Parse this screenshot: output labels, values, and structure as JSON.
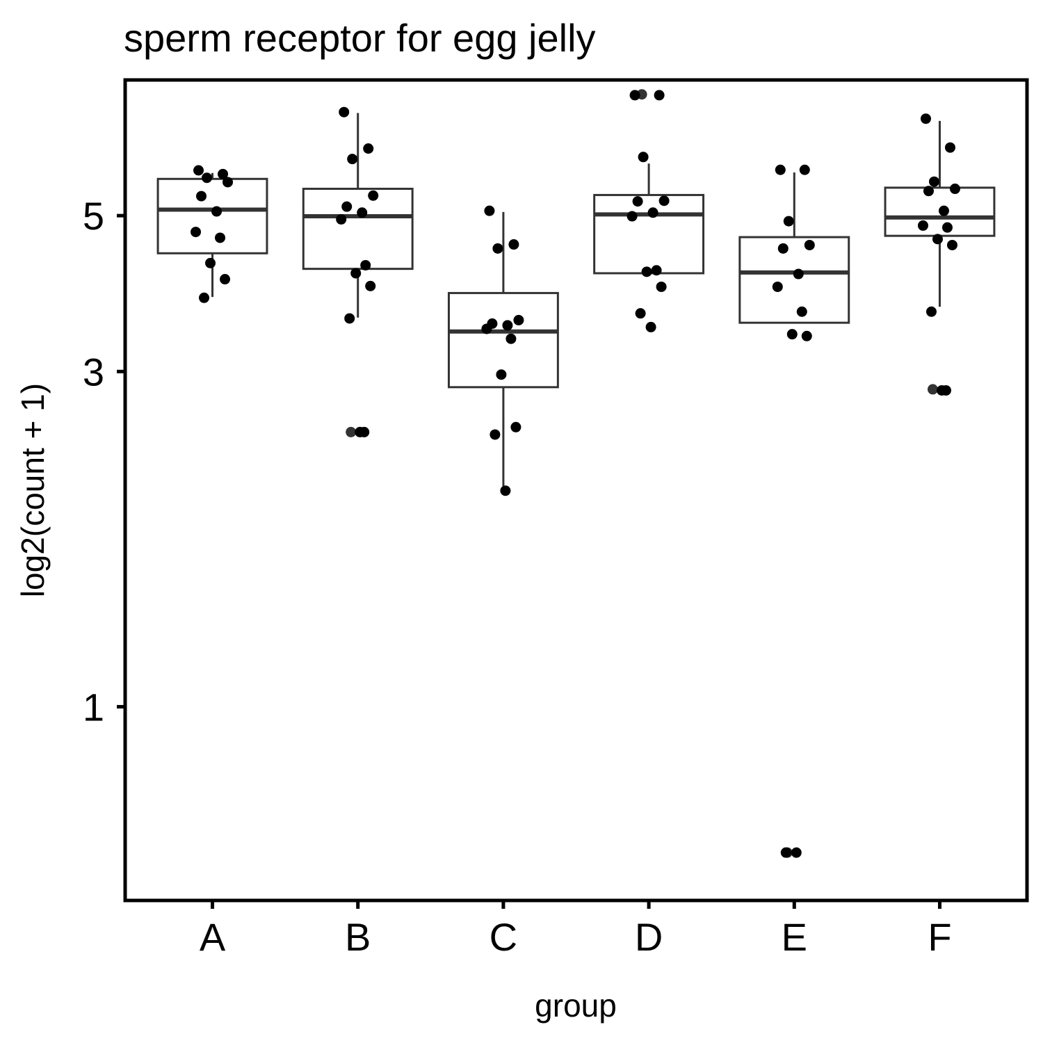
{
  "chart_data": {
    "type": "box",
    "title": "sperm receptor for egg jelly",
    "xlabel": "group",
    "ylabel": "log2(count + 1)",
    "categories": [
      "A",
      "B",
      "C",
      "D",
      "E",
      "F"
    ],
    "y_scale": "log",
    "y_ticks": [
      1,
      3,
      5
    ],
    "ylim": [
      0.53,
      7.8
    ],
    "legend": "none",
    "grid": false,
    "boxes": [
      {
        "group": "A",
        "lower_whisker": 3.83,
        "q1": 4.42,
        "median": 5.1,
        "q3": 5.64,
        "upper_whisker": 5.75,
        "outliers": []
      },
      {
        "group": "B",
        "lower_whisker": 3.58,
        "q1": 4.2,
        "median": 4.99,
        "q3": 5.46,
        "upper_whisker": 7.0,
        "outliers": [
          2.46
        ]
      },
      {
        "group": "C",
        "lower_whisker": 2.06,
        "q1": 2.85,
        "median": 3.42,
        "q3": 3.88,
        "upper_whisker": 5.06,
        "outliers": []
      },
      {
        "group": "D",
        "lower_whisker": 4.14,
        "q1": 4.14,
        "median": 5.02,
        "q3": 5.35,
        "upper_whisker": 5.93,
        "outliers": [
          7.44
        ]
      },
      {
        "group": "E",
        "lower_whisker": 3.52,
        "q1": 3.52,
        "median": 4.15,
        "q3": 4.66,
        "upper_whisker": 5.76,
        "outliers": [
          0.62
        ]
      },
      {
        "group": "F",
        "lower_whisker": 3.71,
        "q1": 4.68,
        "median": 4.97,
        "q3": 5.48,
        "upper_whisker": 6.82,
        "outliers": [
          2.83
        ]
      }
    ],
    "points": [
      {
        "group": "A",
        "values": [
          5.8,
          5.73,
          5.66,
          5.58,
          5.33,
          5.07,
          4.74,
          4.65,
          4.28,
          4.06,
          3.82
        ]
      },
      {
        "group": "B",
        "values": [
          7.02,
          6.23,
          6.02,
          5.34,
          5.15,
          5.05,
          4.94,
          4.25,
          4.14,
          3.97,
          3.57,
          2.46,
          2.46
        ]
      },
      {
        "group": "C",
        "values": [
          5.08,
          4.55,
          4.49,
          3.55,
          3.51,
          3.49,
          3.45,
          3.34,
          2.97,
          2.5,
          2.44,
          2.03
        ]
      },
      {
        "group": "D",
        "values": [
          7.42,
          7.42,
          6.06,
          5.25,
          5.24,
          5.05,
          4.99,
          4.18,
          4.16,
          3.96,
          3.63,
          3.47
        ]
      },
      {
        "group": "E",
        "values": [
          5.81,
          5.81,
          4.91,
          4.54,
          4.49,
          4.13,
          3.96,
          3.65,
          3.39,
          3.37,
          0.62,
          0.62
        ]
      },
      {
        "group": "F",
        "values": [
          6.87,
          6.25,
          5.59,
          5.46,
          5.42,
          5.08,
          4.84,
          4.81,
          4.63,
          4.54,
          3.65,
          2.82,
          2.82
        ]
      }
    ]
  }
}
